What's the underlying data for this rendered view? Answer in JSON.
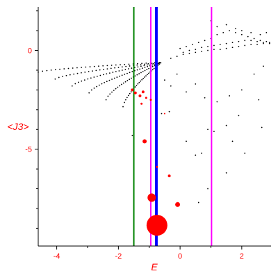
{
  "chart_data": {
    "type": "scatter",
    "xlabel": "E",
    "ylabel": "<J3>",
    "xlim": [
      -4.6,
      2.95
    ],
    "ylim": [
      -9.9,
      2.2
    ],
    "x_ticks": [
      -4,
      -2,
      0,
      2
    ],
    "y_ticks": [
      0,
      -5
    ],
    "vertical_lines": [
      {
        "x": -1.5,
        "color": "#008000"
      },
      {
        "x": -0.95,
        "color": "#ff00ff"
      },
      {
        "x": -0.77,
        "color": "#0000ff"
      },
      {
        "x": 1.02,
        "color": "#ff00ff"
      }
    ],
    "background_band_start": [
      -4.6,
      -1.1
    ],
    "background_band_end": [
      -0.6,
      -0.6
    ],
    "background_points": [
      [
        -0.3,
        -0.4
      ],
      [
        -0.1,
        -0.3
      ],
      [
        0.1,
        -0.2
      ],
      [
        0.3,
        -0.15
      ],
      [
        0.5,
        -0.1
      ],
      [
        0.7,
        -0.05
      ],
      [
        0.9,
        0.0
      ],
      [
        1.1,
        0.05
      ],
      [
        1.3,
        0.05
      ],
      [
        1.5,
        0.1
      ],
      [
        1.7,
        0.15
      ],
      [
        1.9,
        0.2
      ],
      [
        2.1,
        0.25
      ],
      [
        2.3,
        0.3
      ],
      [
        2.5,
        0.3
      ],
      [
        2.7,
        0.35
      ],
      [
        2.9,
        0.4
      ],
      [
        0.0,
        0.1
      ],
      [
        0.2,
        0.2
      ],
      [
        0.4,
        0.3
      ],
      [
        0.6,
        0.4
      ],
      [
        0.8,
        0.5
      ],
      [
        1.0,
        0.6
      ],
      [
        1.2,
        0.8
      ],
      [
        1.4,
        0.9
      ],
      [
        1.6,
        1.0
      ],
      [
        1.8,
        0.9
      ],
      [
        2.0,
        0.8
      ],
      [
        2.2,
        0.7
      ],
      [
        2.4,
        0.6
      ],
      [
        2.6,
        0.5
      ],
      [
        2.8,
        0.45
      ],
      [
        0.1,
        -0.1
      ],
      [
        0.3,
        0.0
      ],
      [
        0.5,
        0.05
      ],
      [
        0.7,
        0.15
      ],
      [
        0.9,
        0.2
      ],
      [
        1.1,
        0.25
      ],
      [
        1.3,
        0.3
      ],
      [
        1.5,
        0.35
      ],
      [
        1.7,
        0.4
      ],
      [
        1.9,
        0.45
      ],
      [
        2.1,
        0.5
      ],
      [
        2.3,
        0.5
      ],
      [
        2.5,
        0.45
      ],
      [
        2.7,
        0.4
      ],
      [
        2.9,
        0.35
      ],
      [
        1.0,
        1.5
      ],
      [
        1.2,
        1.2
      ],
      [
        1.5,
        1.3
      ],
      [
        1.8,
        1.1
      ],
      [
        2.0,
        1.0
      ],
      [
        2.3,
        0.9
      ],
      [
        2.6,
        0.8
      ],
      [
        2.8,
        0.9
      ],
      [
        -0.5,
        -1.5
      ],
      [
        -0.3,
        -1.8
      ],
      [
        -0.1,
        -1.2
      ],
      [
        0.2,
        -2.1
      ],
      [
        0.5,
        -1.7
      ],
      [
        0.8,
        -2.4
      ],
      [
        1.2,
        -2.6
      ],
      [
        1.6,
        -2.3
      ],
      [
        2.0,
        -2.0
      ],
      [
        2.4,
        -1.2
      ],
      [
        2.7,
        -0.8
      ],
      [
        -1.55,
        -4.3
      ],
      [
        -0.6,
        -3.2
      ],
      [
        -0.35,
        -3.1
      ],
      [
        0.2,
        -4.6
      ],
      [
        0.5,
        -5.3
      ],
      [
        0.7,
        -5.2
      ],
      [
        0.9,
        -4.0
      ],
      [
        1.1,
        -4.1
      ],
      [
        1.5,
        -3.8
      ],
      [
        1.7,
        -4.6
      ],
      [
        1.9,
        -3.3
      ],
      [
        2.1,
        -5.2
      ],
      [
        2.55,
        -2.5
      ],
      [
        2.65,
        -3.9
      ],
      [
        0.9,
        -7.0
      ],
      [
        0.6,
        -7.7
      ],
      [
        1.5,
        -6.2
      ]
    ],
    "highlight_points": [
      {
        "x": -1.55,
        "y": -2.0,
        "size": 2
      },
      {
        "x": -1.45,
        "y": -2.15,
        "size": 2
      },
      {
        "x": -1.3,
        "y": -2.3,
        "size": 2
      },
      {
        "x": -1.2,
        "y": -2.1,
        "size": 2
      },
      {
        "x": -1.25,
        "y": -2.7,
        "size": 1.5
      },
      {
        "x": -1.1,
        "y": -2.4,
        "size": 1.5
      },
      {
        "x": -0.95,
        "y": -2.5,
        "size": 1.5
      },
      {
        "x": -0.5,
        "y": -3.2,
        "size": 1
      },
      {
        "x": -1.15,
        "y": -4.6,
        "size": 3
      },
      {
        "x": -0.75,
        "y": -5.9,
        "size": 1.5
      },
      {
        "x": -0.35,
        "y": -6.35,
        "size": 2
      },
      {
        "x": -0.92,
        "y": -7.45,
        "size": 6
      },
      {
        "x": -0.08,
        "y": -7.8,
        "size": 3.5
      },
      {
        "x": -0.75,
        "y": -8.85,
        "size": 15
      }
    ]
  },
  "colors": {
    "axis": "#000000",
    "tick_label": "#ff0000",
    "highlight": "#ff0000",
    "background_points": "#000000"
  }
}
